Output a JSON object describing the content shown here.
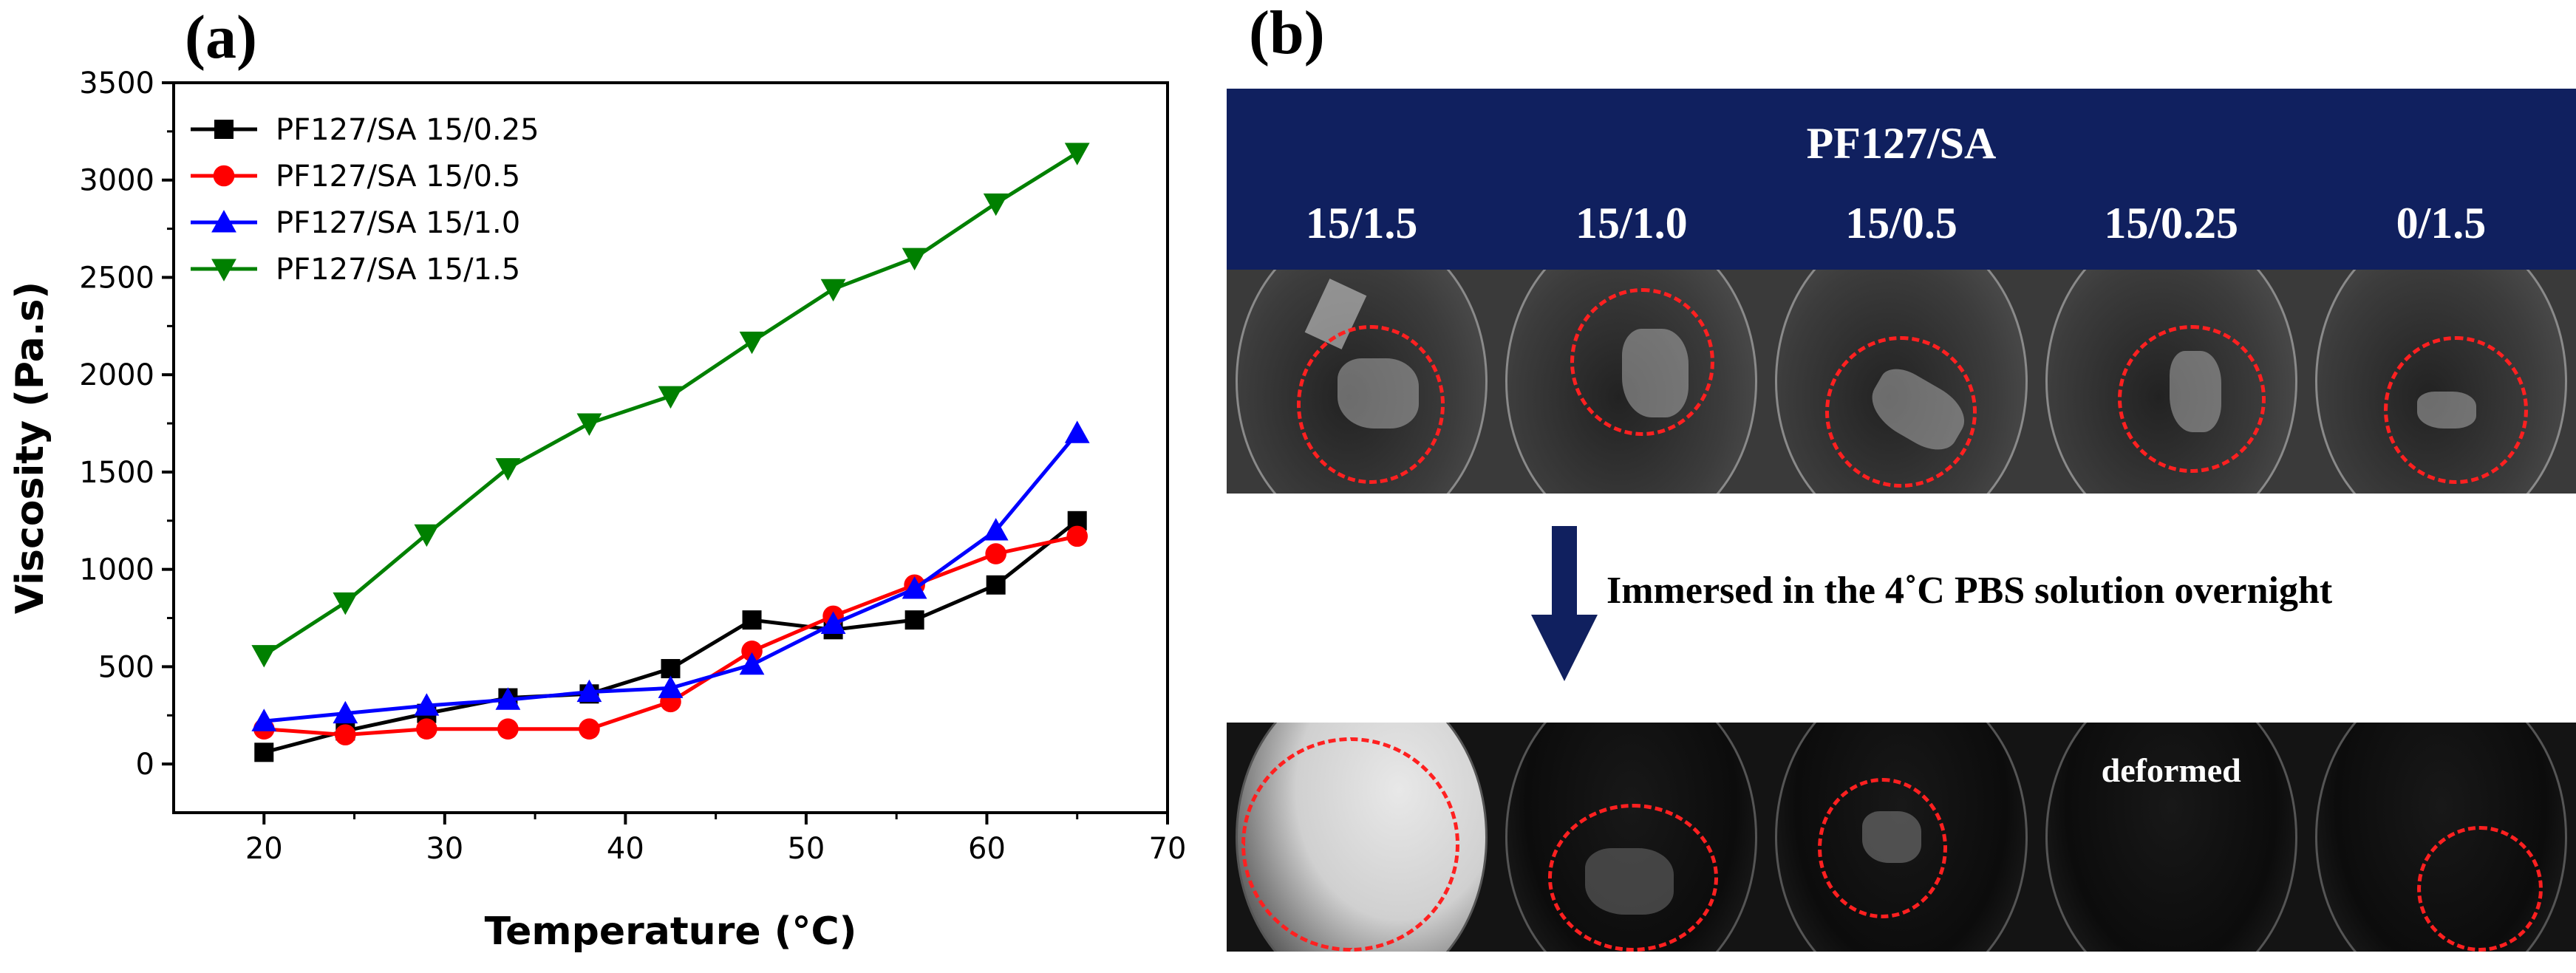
{
  "panels": {
    "a_label": "(a)",
    "b_label": "(b)"
  },
  "chart_data": {
    "type": "line",
    "title": "",
    "xlabel": "Temperature (°C)",
    "ylabel": "Viscosity (Pa.s)",
    "xlim": [
      15,
      70
    ],
    "ylim": [
      -250,
      3500
    ],
    "xticks": [
      20,
      30,
      40,
      50,
      60,
      70
    ],
    "yticks": [
      0,
      500,
      1000,
      1500,
      2000,
      2500,
      3000,
      3500
    ],
    "legend_position": "top-left",
    "x": [
      20,
      24.5,
      29,
      33.5,
      38,
      42.5,
      47,
      51.5,
      56,
      60.5,
      65
    ],
    "series": [
      {
        "name": "PF127/SA 15/0.25",
        "color": "#000000",
        "marker": "square",
        "values": [
          60,
          170,
          260,
          340,
          360,
          490,
          740,
          690,
          740,
          920,
          1250
        ]
      },
      {
        "name": "PF127/SA 15/0.5",
        "color": "#ff0000",
        "marker": "circle",
        "values": [
          180,
          150,
          180,
          180,
          180,
          320,
          580,
          760,
          920,
          1080,
          1170
        ]
      },
      {
        "name": "PF127/SA 15/1.0",
        "color": "#0000ff",
        "marker": "triangle-up",
        "values": [
          220,
          260,
          300,
          330,
          370,
          390,
          510,
          720,
          900,
          1200,
          1700
        ]
      },
      {
        "name": "PF127/SA 15/1.5",
        "color": "#008000",
        "marker": "triangle-down",
        "values": [
          560,
          830,
          1180,
          1520,
          1750,
          1890,
          2170,
          2440,
          2600,
          2880,
          3140
        ]
      }
    ]
  },
  "panel_b": {
    "header_title": "PF127/SA",
    "columns": [
      "15/1.5",
      "15/1.0",
      "15/0.5",
      "15/0.25",
      "0/1.5"
    ],
    "arrow_caption": "Immersed in the 4˚C PBS solution overnight",
    "deformed_label": "deformed",
    "icons": {
      "arrow": "arrow-down-icon"
    },
    "marker_color": "#ff2020",
    "header_color": "#10205f"
  }
}
